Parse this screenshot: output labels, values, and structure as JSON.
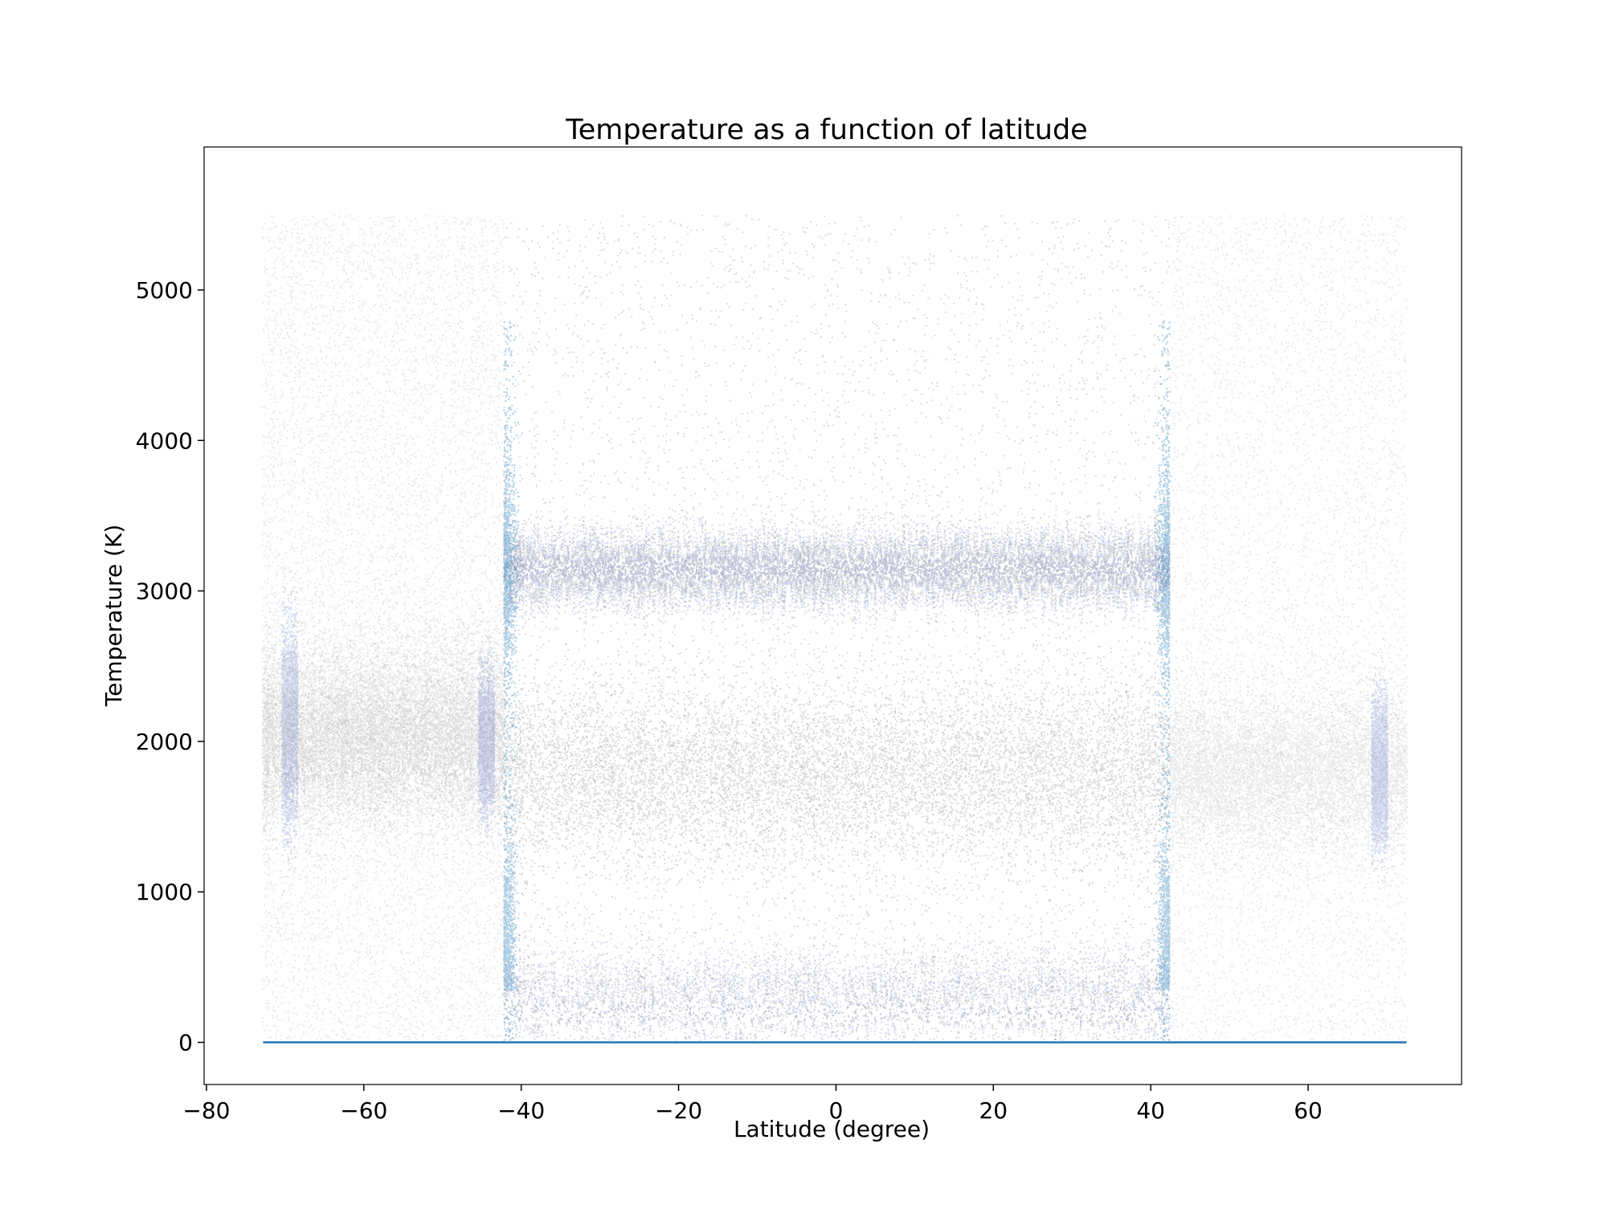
{
  "chart_data": {
    "type": "scatter",
    "title": "Temperature  as a function of latitude",
    "xlabel": "Latitude (degree)",
    "ylabel": "Temperature (K)",
    "xlim": [
      -80.3,
      79.5
    ],
    "ylim": [
      -280,
      5950
    ],
    "xticks": [
      -80,
      -60,
      -40,
      -20,
      0,
      20,
      40,
      60
    ],
    "xtick_labels": [
      "−80",
      "−60",
      "−40",
      "−20",
      "0",
      "20",
      "40",
      "60"
    ],
    "yticks": [
      0,
      1000,
      2000,
      3000,
      4000,
      5000
    ],
    "ytick_labels": [
      "0",
      "1000",
      "2000",
      "3000",
      "4000",
      "5000"
    ],
    "grid": false,
    "legend": "none",
    "colors": {
      "scatter_gray": "#808080",
      "scatter_blue": "#1f77b4",
      "scatter_blue_dense": "#4a5fc8",
      "baseline": "#1f77b4"
    },
    "regions": [
      {
        "x_range": [
          -73,
          -42.3
        ],
        "y_range": [
          20,
          5500
        ],
        "density": "low",
        "bands": [
          {
            "y_center": 2100,
            "y_spread": 600,
            "blue_x": [
              -70.5,
              -68.5
            ]
          },
          {
            "y_center": 2000,
            "y_spread": 400,
            "blue_x": [
              -45.5,
              -43.5
            ]
          }
        ]
      },
      {
        "x_range": [
          -42.3,
          42.3
        ],
        "y_range": [
          20,
          5500
        ],
        "density": "high",
        "bands": [
          {
            "y_center": 3150,
            "y_spread": 200
          },
          {
            "y_center": 300,
            "y_spread": 250
          },
          {
            "y_center": 1800,
            "y_spread": 500
          }
        ]
      },
      {
        "x_range": [
          42.3,
          72.5
        ],
        "y_range": [
          20,
          5500
        ],
        "density": "low",
        "bands": [
          {
            "y_center": 1800,
            "y_spread": 450,
            "blue_x": [
              68,
              70
            ]
          }
        ]
      }
    ],
    "baseline": {
      "x": [
        -72.8,
        72.5
      ],
      "y": [
        0,
        0
      ]
    }
  }
}
